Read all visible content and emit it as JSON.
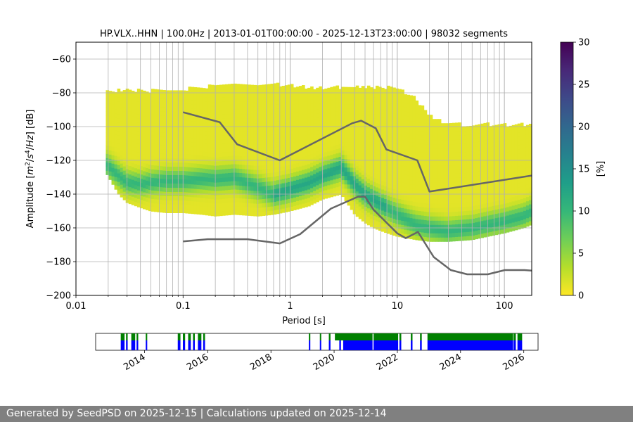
{
  "chart_data": [
    {
      "type": "heatmap",
      "title": "HP.VLX..HHN | 100.0Hz | 2013-01-01T00:00:00 - 2025-12-13T23:00:00 | 98032 segments",
      "xlabel": "Period [s]",
      "ylabel_parts": [
        "Amplitude [",
        "m",
        "2",
        "/",
        "s",
        "4",
        "/",
        "Hz",
        "] [dB]"
      ],
      "x_scale": "log",
      "xlim": [
        0.01,
        180
      ],
      "ylim": [
        -200,
        -50
      ],
      "x_ticks": [
        {
          "value": 0.01,
          "label": "0.01"
        },
        {
          "value": 0.1,
          "label": "0.1"
        },
        {
          "value": 1,
          "label": "1"
        },
        {
          "value": 10,
          "label": "10"
        },
        {
          "value": 100,
          "label": "100"
        }
      ],
      "y_ticks": [
        {
          "value": -60,
          "label": "−60"
        },
        {
          "value": -80,
          "label": "−80"
        },
        {
          "value": -100,
          "label": "−100"
        },
        {
          "value": -120,
          "label": "−120"
        },
        {
          "value": -140,
          "label": "−140"
        },
        {
          "value": -160,
          "label": "−160"
        },
        {
          "value": -180,
          "label": "−180"
        },
        {
          "value": -200,
          "label": "−200"
        }
      ],
      "grid": true,
      "period_band": {
        "periods": [
          0.019,
          0.025,
          0.03,
          0.04,
          0.05,
          0.07,
          0.1,
          0.15,
          0.2,
          0.3,
          0.5,
          0.7,
          1,
          1.5,
          2,
          3,
          4,
          5,
          6,
          8,
          10,
          15,
          20,
          30,
          50,
          70,
          100,
          150,
          180
        ],
        "mode_db": [
          -122,
          -129,
          -133,
          -134,
          -133,
          -132,
          -132,
          -131,
          -131,
          -130,
          -136,
          -140,
          -137,
          -133,
          -129,
          -124,
          -134,
          -140,
          -143,
          -148,
          -152,
          -158,
          -160,
          -162,
          -160,
          -158,
          -156,
          -153,
          -150
        ],
        "upper_db": [
          -80,
          -80,
          -80,
          -80,
          -80,
          -80,
          -79,
          -78,
          -77,
          -76,
          -76,
          -76,
          -77,
          -78,
          -78,
          -78,
          -78,
          -78,
          -78,
          -78,
          -78,
          -85,
          -95,
          -100,
          -100,
          -100,
          -100,
          -100,
          -100
        ],
        "lower_db": [
          -127,
          -140,
          -145,
          -148,
          -150,
          -151,
          -151,
          -152,
          -153,
          -152,
          -153,
          -152,
          -150,
          -147,
          -143,
          -140,
          -152,
          -157,
          -160,
          -163,
          -165,
          -167,
          -168,
          -168,
          -167,
          -165,
          -163,
          -160,
          -158
        ]
      },
      "reference_curves": [
        {
          "periods": [
            0.1,
            0.22,
            0.32,
            0.8,
            3.8,
            4.6,
            6.3,
            7.9,
            15.4,
            20,
            180
          ],
          "db": [
            -91.5,
            -97.4,
            -110.5,
            -120,
            -98,
            -96.5,
            -101,
            -113.5,
            -120,
            -138.5,
            -129
          ]
        },
        {
          "periods": [
            0.1,
            0.17,
            0.4,
            0.8,
            1.24,
            2.4,
            4.3,
            5,
            6,
            10,
            12,
            15.6,
            21.9,
            31.6,
            45,
            70,
            101,
            154,
            180
          ],
          "db": [
            -168,
            -166.7,
            -166.7,
            -169.2,
            -163.7,
            -148.6,
            -141.5,
            -141.5,
            -149.2,
            -163.2,
            -166.1,
            -162.4,
            -177.3,
            -185,
            -187.5,
            -187.5,
            -185,
            -185,
            -185.3
          ]
        }
      ],
      "colorbar": {
        "label": "[%]",
        "range": [
          0,
          30
        ],
        "ticks": [
          {
            "value": 0,
            "label": "0"
          },
          {
            "value": 5,
            "label": "5"
          },
          {
            "value": 10,
            "label": "10"
          },
          {
            "value": 15,
            "label": "15"
          },
          {
            "value": 20,
            "label": "20"
          },
          {
            "value": 25,
            "label": "25"
          },
          {
            "value": 30,
            "label": "30"
          }
        ],
        "colors": [
          "#fde725",
          "#b5de2b",
          "#6ece58",
          "#35b779",
          "#1f9e89",
          "#26828e",
          "#31688e",
          "#3e4989",
          "#482878",
          "#440154"
        ]
      }
    },
    {
      "type": "timeline",
      "x_range": [
        "2012-06-15",
        "2026-06-15"
      ],
      "x_ticks": [
        {
          "value": "2014-01-01",
          "label": "2014"
        },
        {
          "value": "2016-01-01",
          "label": "2016"
        },
        {
          "value": "2018-01-01",
          "label": "2018"
        },
        {
          "value": "2020-01-01",
          "label": "2020"
        },
        {
          "value": "2022-01-01",
          "label": "2022"
        },
        {
          "value": "2024-01-01",
          "label": "2024"
        },
        {
          "value": "2026-01-01",
          "label": "2026"
        }
      ],
      "series": [
        {
          "color": "#008000",
          "periods": [
            [
              "2013-04-01",
              "2013-05-15"
            ],
            [
              "2013-06-01",
              "2013-06-20"
            ],
            [
              "2013-08-01",
              "2013-09-15"
            ],
            [
              "2013-10-01",
              "2013-10-20"
            ],
            [
              "2014-01-15",
              "2014-02-01"
            ],
            [
              "2015-01-20",
              "2015-02-20"
            ],
            [
              "2015-03-20",
              "2015-04-15"
            ],
            [
              "2015-05-20",
              "2015-06-20"
            ],
            [
              "2015-07-15",
              "2015-08-05"
            ],
            [
              "2015-09-10",
              "2015-10-20"
            ],
            [
              "2015-11-10",
              "2015-12-01"
            ],
            [
              "2019-03-15",
              "2019-04-01"
            ],
            [
              "2019-07-20",
              "2019-08-05"
            ],
            [
              "2019-11-01",
              "2019-11-20"
            ],
            [
              "2020-01-10",
              "2021-03-20"
            ],
            [
              "2021-04-01",
              "2022-01-10"
            ],
            [
              "2022-01-25",
              "2022-02-15"
            ],
            [
              "2022-06-05",
              "2022-06-25"
            ],
            [
              "2022-09-20",
              "2022-10-10"
            ],
            [
              "2022-12-15",
              "2025-08-30"
            ],
            [
              "2025-09-05",
              "2025-10-01"
            ],
            [
              "2025-10-20",
              "2025-12-13"
            ]
          ]
        },
        {
          "color": "#0000ff",
          "periods": [
            [
              "2013-04-01",
              "2013-05-15"
            ],
            [
              "2013-06-01",
              "2013-06-20"
            ],
            [
              "2013-08-01",
              "2013-09-15"
            ],
            [
              "2013-10-01",
              "2013-10-20"
            ],
            [
              "2014-01-15",
              "2014-02-01"
            ],
            [
              "2015-01-20",
              "2015-02-20"
            ],
            [
              "2015-03-20",
              "2015-04-15"
            ],
            [
              "2015-05-20",
              "2015-06-20"
            ],
            [
              "2015-07-15",
              "2015-08-05"
            ],
            [
              "2015-09-10",
              "2015-10-20"
            ],
            [
              "2015-11-10",
              "2015-12-01"
            ],
            [
              "2019-03-15",
              "2019-04-01"
            ],
            [
              "2019-07-20",
              "2019-08-05"
            ],
            [
              "2019-11-01",
              "2019-11-20"
            ],
            [
              "2020-03-01",
              "2020-03-20"
            ],
            [
              "2020-04-15",
              "2021-03-20"
            ],
            [
              "2021-04-01",
              "2022-01-10"
            ],
            [
              "2022-01-25",
              "2022-02-15"
            ],
            [
              "2022-06-05",
              "2022-06-25"
            ],
            [
              "2022-09-20",
              "2022-10-10"
            ],
            [
              "2022-12-15",
              "2025-08-30"
            ],
            [
              "2025-09-05",
              "2025-10-01"
            ],
            [
              "2025-10-20",
              "2025-12-13"
            ]
          ]
        }
      ]
    }
  ],
  "footer": {
    "text": "Generated by SeedPSD on 2025-12-15 | Calculations updated on 2025-12-14"
  }
}
